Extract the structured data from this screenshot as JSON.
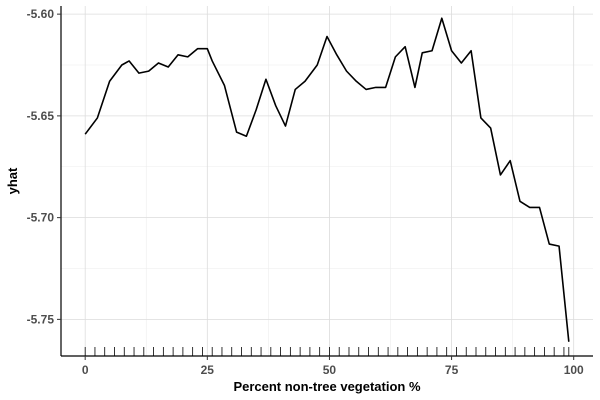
{
  "chart_data": {
    "type": "line",
    "xlabel": "Percent non-tree vegetation %",
    "ylabel": "yhat",
    "xlim": [
      -4.95,
      103.95
    ],
    "ylim": [
      -5.768,
      -5.596
    ],
    "x_ticks": [
      0,
      25,
      50,
      75,
      100
    ],
    "x_tick_labels": [
      "0",
      "25",
      "50",
      "75",
      "100"
    ],
    "y_ticks": [
      -5.6,
      -5.65,
      -5.7,
      -5.75
    ],
    "y_tick_labels": [
      "-5.60",
      "-5.65",
      "-5.70",
      "-5.75"
    ],
    "grid": true,
    "rug_x": [
      0,
      2,
      4,
      6,
      8,
      10,
      12,
      14,
      16,
      18,
      20,
      22,
      24,
      26,
      28,
      30,
      32,
      34,
      36,
      38,
      40,
      42,
      44,
      46,
      48,
      50,
      52,
      54,
      56,
      58,
      60,
      62,
      64,
      66,
      68,
      70,
      72,
      74,
      76,
      78,
      80,
      82,
      84,
      86,
      88,
      90,
      92,
      94,
      96,
      98,
      99
    ],
    "series": [
      {
        "color": "#000000",
        "x": [
          0,
          2.5,
          5,
          7.5,
          9,
          11,
          13,
          15,
          17,
          19,
          21,
          23,
          25,
          26,
          28.5,
          31,
          33,
          35,
          37,
          39,
          41,
          43,
          45,
          47.5,
          49.5,
          51.5,
          53.5,
          55.5,
          57.5,
          59.5,
          61.5,
          63.5,
          65.5,
          67.5,
          69,
          71,
          73,
          75,
          77,
          79,
          81,
          83,
          85,
          87,
          89,
          91,
          93,
          95,
          97,
          99
        ],
        "y": [
          -5.659,
          -5.651,
          -5.633,
          -5.625,
          -5.623,
          -5.629,
          -5.628,
          -5.624,
          -5.626,
          -5.62,
          -5.621,
          -5.617,
          -5.617,
          -5.623,
          -5.635,
          -5.658,
          -5.66,
          -5.647,
          -5.632,
          -5.645,
          -5.655,
          -5.637,
          -5.633,
          -5.625,
          -5.611,
          -5.62,
          -5.628,
          -5.633,
          -5.637,
          -5.636,
          -5.636,
          -5.621,
          -5.616,
          -5.636,
          -5.619,
          -5.618,
          -5.602,
          -5.618,
          -5.624,
          -5.618,
          -5.651,
          -5.656,
          -5.679,
          -5.672,
          -5.692,
          -5.695,
          -5.695,
          -5.713,
          -5.714,
          -5.761
        ]
      }
    ]
  }
}
